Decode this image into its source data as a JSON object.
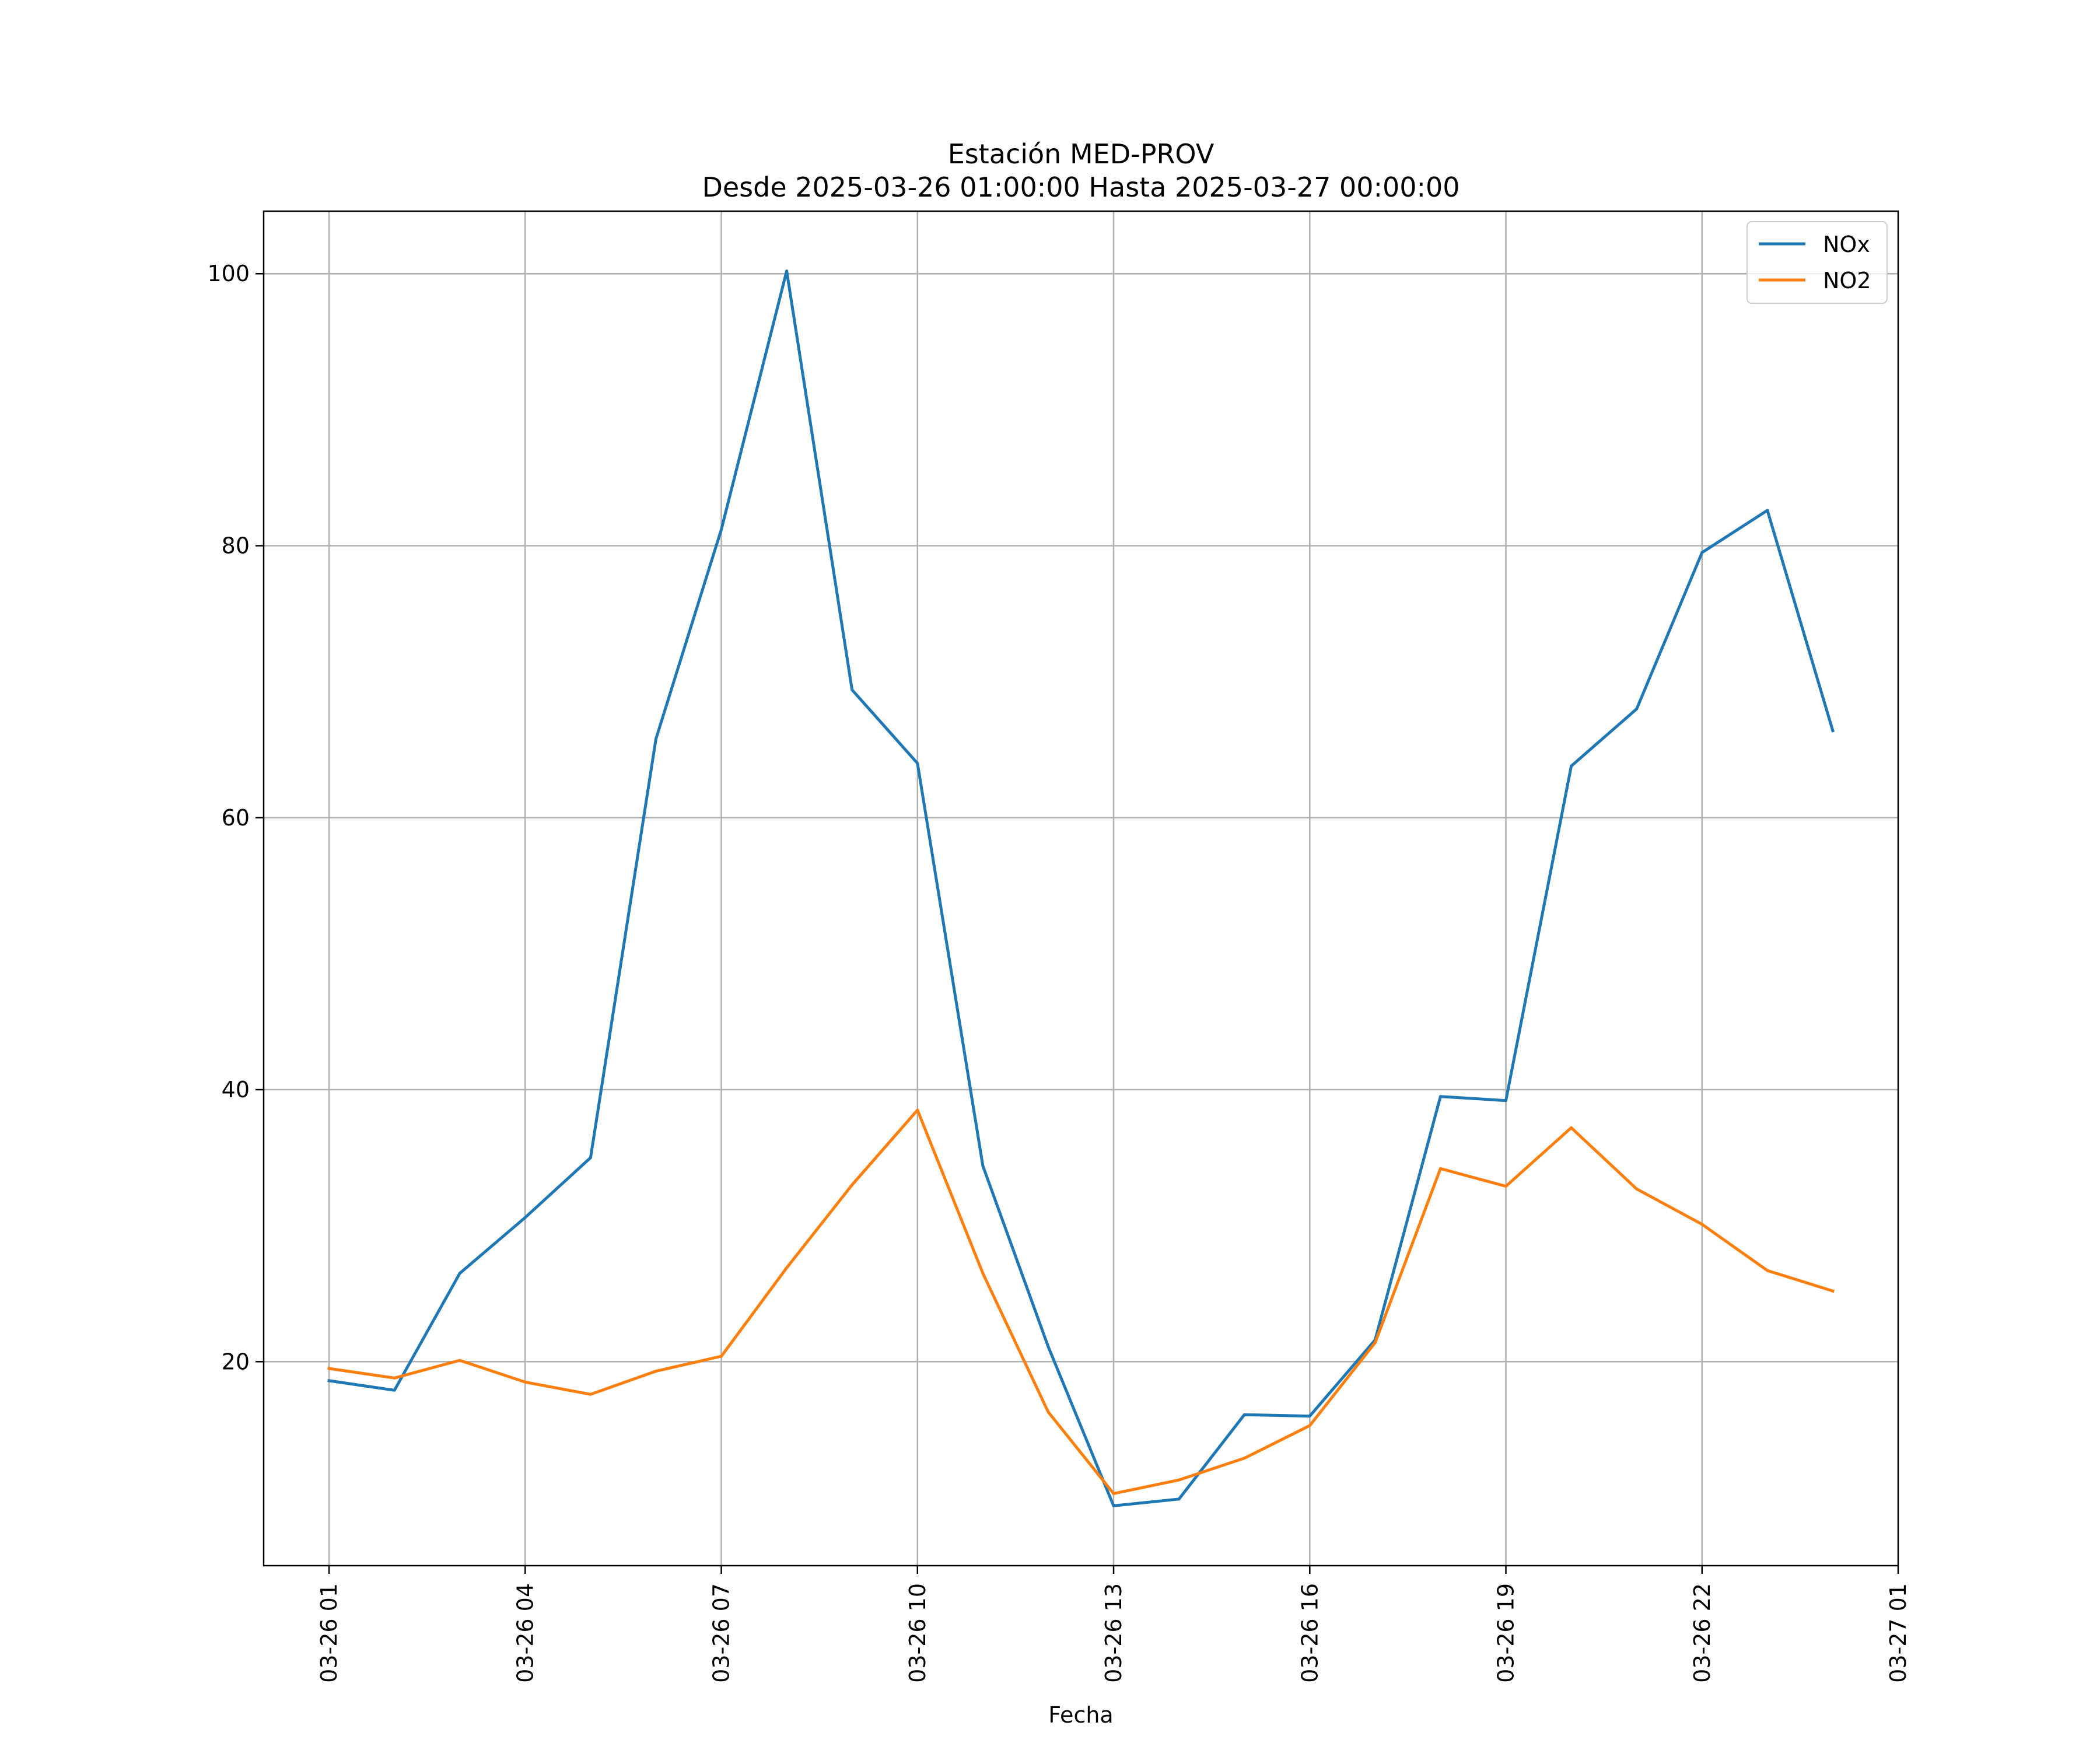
{
  "chart_data": {
    "type": "line",
    "title": "Estación MED-PROV",
    "subtitle": "Desde 2025-03-26 01:00:00 Hasta 2025-03-27 00:00:00",
    "xlabel": "Fecha",
    "ylabel": "",
    "x": [
      "2025-03-26 01:00",
      "2025-03-26 02:00",
      "2025-03-26 03:00",
      "2025-03-26 04:00",
      "2025-03-26 05:00",
      "2025-03-26 06:00",
      "2025-03-26 07:00",
      "2025-03-26 08:00",
      "2025-03-26 09:00",
      "2025-03-26 10:00",
      "2025-03-26 11:00",
      "2025-03-26 12:00",
      "2025-03-26 13:00",
      "2025-03-26 14:00",
      "2025-03-26 15:00",
      "2025-03-26 16:00",
      "2025-03-26 17:00",
      "2025-03-26 18:00",
      "2025-03-26 19:00",
      "2025-03-26 20:00",
      "2025-03-26 21:00",
      "2025-03-26 22:00",
      "2025-03-26 23:00",
      "2025-03-27 00:00"
    ],
    "x_range": [
      "2025-03-26 00:00",
      "2025-03-27 01:00"
    ],
    "x_ticks": [
      "2025-03-26 01:00",
      "2025-03-26 04:00",
      "2025-03-26 07:00",
      "2025-03-26 10:00",
      "2025-03-26 13:00",
      "2025-03-26 16:00",
      "2025-03-26 19:00",
      "2025-03-26 22:00",
      "2025-03-27 01:00"
    ],
    "x_tick_labels": [
      "03-26 01",
      "03-26 04",
      "03-26 07",
      "03-26 10",
      "03-26 13",
      "03-26 16",
      "03-26 19",
      "03-26 22",
      "03-27 01"
    ],
    "y_ticks": [
      20,
      40,
      60,
      80,
      100
    ],
    "y_tick_labels": [
      "20",
      "40",
      "60",
      "80",
      "100"
    ],
    "ylim": [
      5,
      104.6
    ],
    "series": [
      {
        "name": "NOx",
        "color": "#1f77b4",
        "values": [
          18.6,
          17.9,
          26.5,
          30.6,
          35.0,
          65.8,
          81.2,
          100.2,
          69.4,
          64.0,
          34.4,
          21.1,
          9.4,
          9.9,
          16.1,
          16.0,
          21.6,
          39.5,
          39.2,
          63.8,
          68.0,
          79.5,
          82.6,
          66.4
        ]
      },
      {
        "name": "NO2",
        "color": "#ff7f0e",
        "values": [
          19.5,
          18.8,
          20.1,
          18.5,
          17.6,
          19.3,
          20.4,
          26.9,
          33.0,
          38.5,
          26.5,
          16.3,
          10.3,
          11.3,
          12.9,
          15.3,
          21.4,
          34.2,
          32.9,
          37.2,
          32.7,
          30.1,
          26.7,
          25.2
        ]
      }
    ],
    "grid": true,
    "legend_position": "top-right"
  }
}
